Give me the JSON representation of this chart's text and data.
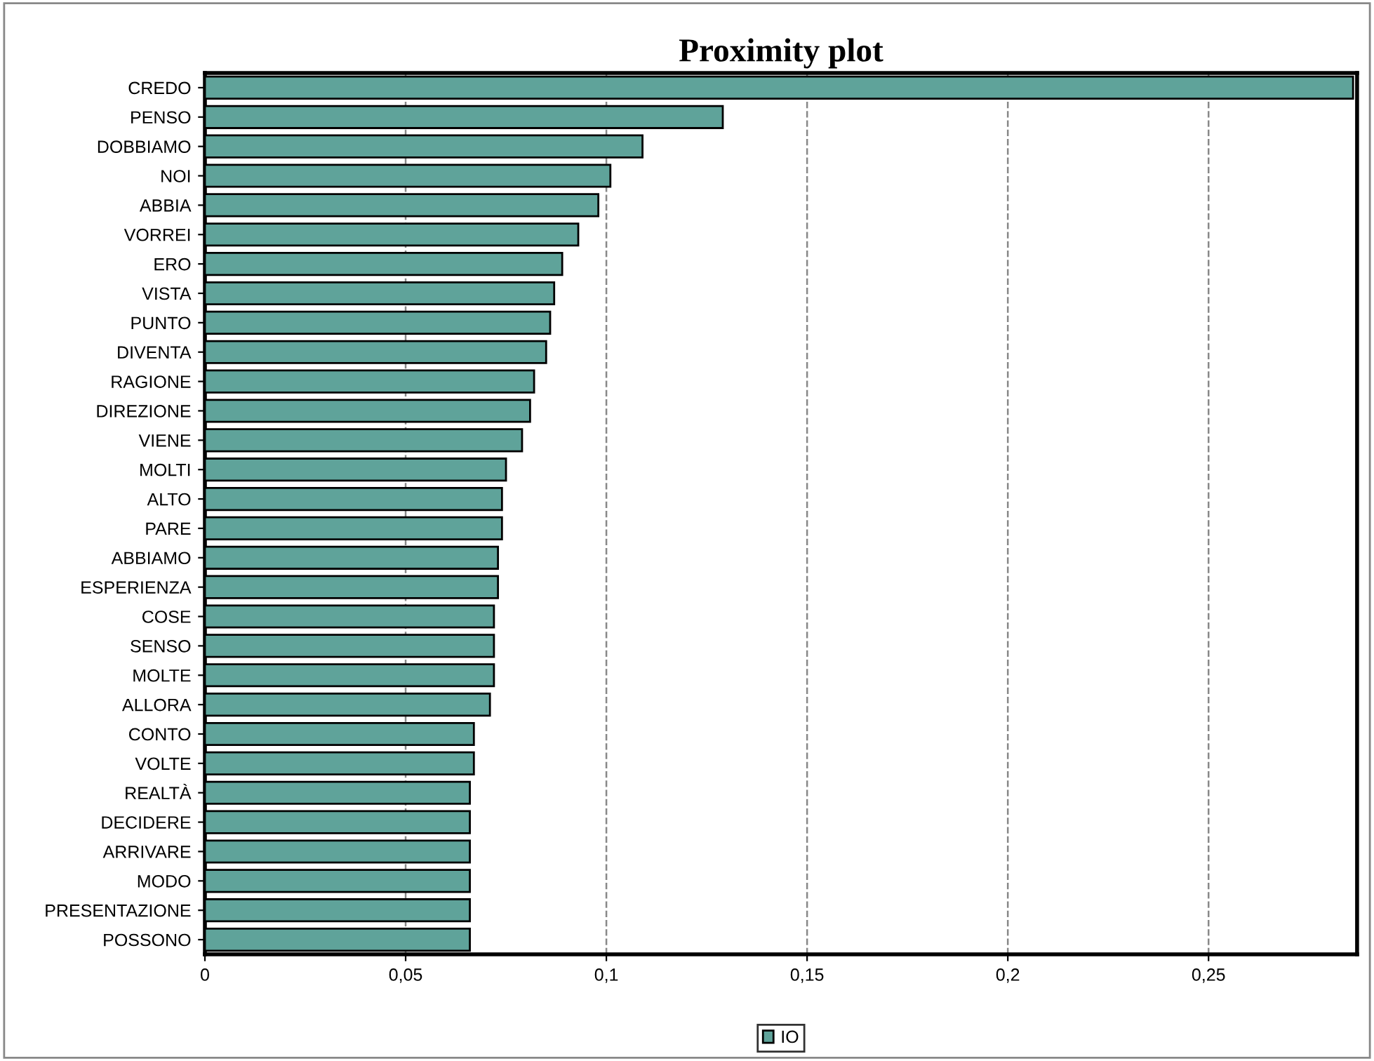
{
  "chart_data": {
    "type": "bar",
    "orientation": "horizontal",
    "title": "Proximity plot",
    "categories": [
      "CREDO",
      "PENSO",
      "DOBBIAMO",
      "NOI",
      "ABBIA",
      "VORREI",
      "ERO",
      "VISTA",
      "PUNTO",
      "DIVENTA",
      "RAGIONE",
      "DIREZIONE",
      "VIENE",
      "MOLTI",
      "ALTO",
      "PARE",
      "ABBIAMO",
      "ESPERIENZA",
      "COSE",
      "SENSO",
      "MOLTE",
      "ALLORA",
      "CONTO",
      "VOLTE",
      "REALTÀ",
      "DECIDERE",
      "ARRIVARE",
      "MODO",
      "PRESENTAZIONE",
      "POSSONO"
    ],
    "series": [
      {
        "name": "IO",
        "color": "#5fa39a",
        "values": [
          0.286,
          0.129,
          0.109,
          0.101,
          0.098,
          0.093,
          0.089,
          0.087,
          0.086,
          0.085,
          0.082,
          0.081,
          0.079,
          0.075,
          0.074,
          0.074,
          0.073,
          0.073,
          0.072,
          0.072,
          0.072,
          0.071,
          0.067,
          0.067,
          0.066,
          0.066,
          0.066,
          0.066,
          0.066,
          0.066
        ]
      }
    ],
    "xlim": [
      0,
      0.287
    ],
    "xticks": [
      0,
      {
        "value": 0.05,
        "label": "0,05"
      },
      {
        "value": 0.1,
        "label": "0,1"
      },
      {
        "value": 0.15,
        "label": "0,15"
      },
      {
        "value": 0.2,
        "label": "0,2"
      },
      {
        "value": 0.25,
        "label": "0,25"
      }
    ],
    "grid": "x",
    "legend": "bottom"
  }
}
